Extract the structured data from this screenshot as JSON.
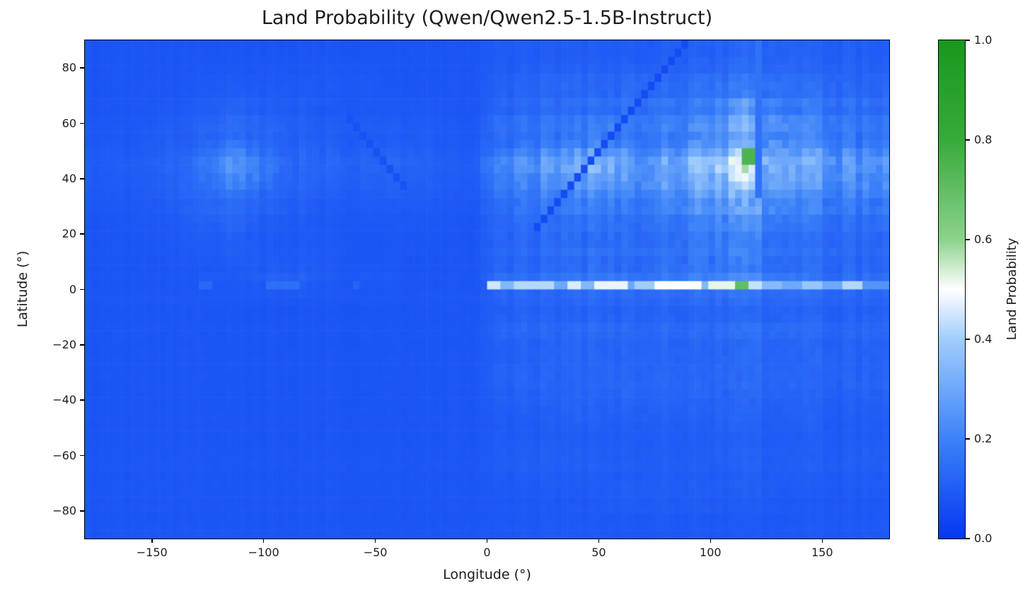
{
  "colors": {
    "background": "#ffffff",
    "spine": "#000000",
    "text": "#1c1c1c"
  },
  "chart_data": {
    "type": "heatmap",
    "title": "Land Probability (Qwen/Qwen2.5-1.5B-Instruct)",
    "xlabel": "Longitude (°)",
    "ylabel": "Latitude (°)",
    "x_range": [
      -180,
      180
    ],
    "y_range": [
      -90,
      90
    ],
    "x_ticks": [
      {
        "v": -150,
        "label": "−150"
      },
      {
        "v": -100,
        "label": "−100"
      },
      {
        "v": -50,
        "label": "−50"
      },
      {
        "v": 0,
        "label": "0"
      },
      {
        "v": 50,
        "label": "50"
      },
      {
        "v": 100,
        "label": "100"
      },
      {
        "v": 150,
        "label": "150"
      }
    ],
    "y_ticks": [
      {
        "v": 80,
        "label": "80"
      },
      {
        "v": 60,
        "label": "60"
      },
      {
        "v": 40,
        "label": "40"
      },
      {
        "v": 20,
        "label": "20"
      },
      {
        "v": 0,
        "label": "0"
      },
      {
        "v": -20,
        "label": "−20"
      },
      {
        "v": -40,
        "label": "−40"
      },
      {
        "v": -60,
        "label": "−60"
      },
      {
        "v": -80,
        "label": "−80"
      }
    ],
    "colorbar": {
      "label": "Land Probability",
      "range": [
        0,
        1
      ],
      "ticks": [
        {
          "v": 1.0,
          "label": "1.0"
        },
        {
          "v": 0.8,
          "label": "0.8"
        },
        {
          "v": 0.6,
          "label": "0.6"
        },
        {
          "v": 0.4,
          "label": "0.4"
        },
        {
          "v": 0.2,
          "label": "0.2"
        },
        {
          "v": 0.0,
          "label": "0.0"
        }
      ]
    },
    "colormap_stops": [
      {
        "t": 0.0,
        "color": [
          5,
          55,
          242
        ]
      },
      {
        "t": 0.2,
        "color": [
          60,
          130,
          248
        ]
      },
      {
        "t": 0.4,
        "color": [
          160,
          205,
          252
        ]
      },
      {
        "t": 0.5,
        "color": [
          255,
          255,
          255
        ]
      },
      {
        "t": 0.6,
        "color": [
          140,
          210,
          140
        ]
      },
      {
        "t": 0.8,
        "color": [
          55,
          170,
          58
        ]
      },
      {
        "t": 1.0,
        "color": [
          24,
          152,
          28
        ]
      }
    ],
    "grid_resolution_deg": 3,
    "coarse_grid": {
      "lon_centers_start": -175,
      "lon_step": 10,
      "lat_centers_start": 85,
      "lat_step": -10,
      "values": [
        [
          0.08,
          0.08,
          0.08,
          0.08,
          0.08,
          0.08,
          0.08,
          0.08,
          0.08,
          0.08,
          0.08,
          0.08,
          0.08,
          0.08,
          0.08,
          0.08,
          0.08,
          0.08,
          0.1,
          0.1,
          0.1,
          0.1,
          0.1,
          0.1,
          0.1,
          0.1,
          0.11,
          0.11,
          0.12,
          0.13,
          0.13,
          0.12,
          0.11,
          0.11,
          0.11,
          0.1
        ],
        [
          0.08,
          0.08,
          0.08,
          0.08,
          0.08,
          0.09,
          0.09,
          0.09,
          0.09,
          0.09,
          0.09,
          0.09,
          0.09,
          0.08,
          0.08,
          0.08,
          0.08,
          0.08,
          0.11,
          0.11,
          0.12,
          0.12,
          0.12,
          0.12,
          0.13,
          0.13,
          0.13,
          0.14,
          0.15,
          0.16,
          0.15,
          0.14,
          0.13,
          0.13,
          0.12,
          0.12
        ],
        [
          0.08,
          0.08,
          0.08,
          0.09,
          0.09,
          0.1,
          0.11,
          0.11,
          0.1,
          0.1,
          0.09,
          0.09,
          0.09,
          0.09,
          0.09,
          0.09,
          0.08,
          0.08,
          0.13,
          0.13,
          0.14,
          0.14,
          0.14,
          0.15,
          0.15,
          0.16,
          0.17,
          0.18,
          0.22,
          0.26,
          0.22,
          0.18,
          0.17,
          0.16,
          0.15,
          0.14
        ],
        [
          0.09,
          0.09,
          0.09,
          0.1,
          0.1,
          0.12,
          0.14,
          0.13,
          0.12,
          0.11,
          0.1,
          0.1,
          0.1,
          0.1,
          0.1,
          0.1,
          0.09,
          0.09,
          0.15,
          0.15,
          0.16,
          0.17,
          0.18,
          0.2,
          0.17,
          0.18,
          0.19,
          0.22,
          0.27,
          0.32,
          0.27,
          0.22,
          0.2,
          0.19,
          0.17,
          0.16
        ],
        [
          0.1,
          0.1,
          0.1,
          0.11,
          0.12,
          0.17,
          0.24,
          0.22,
          0.16,
          0.13,
          0.12,
          0.12,
          0.12,
          0.12,
          0.12,
          0.11,
          0.1,
          0.1,
          0.22,
          0.24,
          0.26,
          0.28,
          0.32,
          0.34,
          0.26,
          0.28,
          0.3,
          0.36,
          0.44,
          0.5,
          0.4,
          0.33,
          0.3,
          0.28,
          0.26,
          0.24
        ],
        [
          0.09,
          0.09,
          0.09,
          0.1,
          0.11,
          0.13,
          0.15,
          0.14,
          0.12,
          0.11,
          0.1,
          0.1,
          0.1,
          0.1,
          0.1,
          0.1,
          0.09,
          0.09,
          0.16,
          0.17,
          0.18,
          0.19,
          0.2,
          0.22,
          0.19,
          0.21,
          0.23,
          0.26,
          0.3,
          0.32,
          0.27,
          0.23,
          0.21,
          0.2,
          0.19,
          0.18
        ],
        [
          0.08,
          0.08,
          0.09,
          0.09,
          0.1,
          0.11,
          0.12,
          0.11,
          0.1,
          0.1,
          0.09,
          0.09,
          0.09,
          0.09,
          0.09,
          0.09,
          0.08,
          0.08,
          0.14,
          0.14,
          0.15,
          0.15,
          0.16,
          0.17,
          0.15,
          0.17,
          0.18,
          0.2,
          0.24,
          0.25,
          0.21,
          0.18,
          0.17,
          0.16,
          0.15,
          0.15
        ],
        [
          0.08,
          0.08,
          0.08,
          0.08,
          0.09,
          0.09,
          0.1,
          0.1,
          0.09,
          0.09,
          0.09,
          0.09,
          0.08,
          0.08,
          0.08,
          0.08,
          0.08,
          0.08,
          0.13,
          0.13,
          0.13,
          0.14,
          0.14,
          0.15,
          0.14,
          0.15,
          0.16,
          0.17,
          0.19,
          0.2,
          0.17,
          0.15,
          0.14,
          0.14,
          0.13,
          0.13
        ],
        [
          0.08,
          0.08,
          0.08,
          0.08,
          0.08,
          0.09,
          0.09,
          0.1,
          0.11,
          0.11,
          0.1,
          0.09,
          0.09,
          0.09,
          0.08,
          0.08,
          0.08,
          0.08,
          0.14,
          0.14,
          0.14,
          0.15,
          0.15,
          0.16,
          0.15,
          0.16,
          0.17,
          0.18,
          0.19,
          0.2,
          0.17,
          0.16,
          0.15,
          0.14,
          0.14,
          0.13
        ],
        [
          0.08,
          0.08,
          0.08,
          0.08,
          0.08,
          0.08,
          0.08,
          0.08,
          0.08,
          0.08,
          0.08,
          0.08,
          0.08,
          0.08,
          0.08,
          0.08,
          0.08,
          0.08,
          0.11,
          0.11,
          0.11,
          0.11,
          0.12,
          0.12,
          0.12,
          0.12,
          0.12,
          0.12,
          0.13,
          0.13,
          0.12,
          0.12,
          0.12,
          0.11,
          0.11,
          0.11
        ],
        [
          0.08,
          0.08,
          0.08,
          0.08,
          0.08,
          0.08,
          0.08,
          0.08,
          0.08,
          0.08,
          0.08,
          0.08,
          0.08,
          0.08,
          0.08,
          0.08,
          0.08,
          0.08,
          0.12,
          0.12,
          0.12,
          0.12,
          0.13,
          0.13,
          0.13,
          0.13,
          0.13,
          0.13,
          0.14,
          0.14,
          0.14,
          0.13,
          0.13,
          0.12,
          0.12,
          0.12
        ],
        [
          0.08,
          0.08,
          0.08,
          0.08,
          0.08,
          0.08,
          0.08,
          0.08,
          0.08,
          0.08,
          0.08,
          0.08,
          0.08,
          0.08,
          0.08,
          0.08,
          0.08,
          0.08,
          0.11,
          0.11,
          0.11,
          0.12,
          0.12,
          0.12,
          0.12,
          0.12,
          0.12,
          0.12,
          0.13,
          0.13,
          0.13,
          0.12,
          0.12,
          0.12,
          0.11,
          0.11
        ],
        [
          0.08,
          0.08,
          0.08,
          0.08,
          0.08,
          0.08,
          0.08,
          0.08,
          0.08,
          0.08,
          0.08,
          0.08,
          0.08,
          0.08,
          0.08,
          0.08,
          0.08,
          0.08,
          0.12,
          0.12,
          0.12,
          0.12,
          0.12,
          0.13,
          0.13,
          0.13,
          0.13,
          0.13,
          0.13,
          0.14,
          0.13,
          0.13,
          0.12,
          0.12,
          0.12,
          0.12
        ],
        [
          0.08,
          0.08,
          0.08,
          0.08,
          0.08,
          0.08,
          0.08,
          0.08,
          0.08,
          0.08,
          0.08,
          0.08,
          0.08,
          0.08,
          0.08,
          0.08,
          0.08,
          0.08,
          0.1,
          0.1,
          0.1,
          0.11,
          0.11,
          0.11,
          0.11,
          0.11,
          0.11,
          0.11,
          0.12,
          0.12,
          0.11,
          0.11,
          0.11,
          0.1,
          0.1,
          0.1
        ],
        [
          0.08,
          0.08,
          0.08,
          0.08,
          0.08,
          0.08,
          0.08,
          0.08,
          0.08,
          0.08,
          0.08,
          0.08,
          0.08,
          0.08,
          0.08,
          0.08,
          0.08,
          0.08,
          0.1,
          0.1,
          0.1,
          0.1,
          0.1,
          0.1,
          0.1,
          0.1,
          0.1,
          0.1,
          0.11,
          0.11,
          0.1,
          0.1,
          0.1,
          0.1,
          0.1,
          0.1
        ],
        [
          0.08,
          0.08,
          0.08,
          0.08,
          0.08,
          0.08,
          0.08,
          0.08,
          0.08,
          0.08,
          0.08,
          0.08,
          0.08,
          0.08,
          0.08,
          0.08,
          0.08,
          0.08,
          0.1,
          0.1,
          0.1,
          0.1,
          0.1,
          0.1,
          0.1,
          0.1,
          0.1,
          0.1,
          0.1,
          0.11,
          0.1,
          0.1,
          0.1,
          0.1,
          0.1,
          0.1
        ],
        [
          0.08,
          0.08,
          0.08,
          0.08,
          0.08,
          0.08,
          0.08,
          0.08,
          0.08,
          0.08,
          0.08,
          0.08,
          0.08,
          0.08,
          0.08,
          0.08,
          0.08,
          0.08,
          0.09,
          0.09,
          0.09,
          0.09,
          0.09,
          0.1,
          0.1,
          0.1,
          0.1,
          0.1,
          0.1,
          0.1,
          0.1,
          0.09,
          0.09,
          0.09,
          0.09,
          0.09
        ],
        [
          0.08,
          0.08,
          0.08,
          0.08,
          0.08,
          0.08,
          0.08,
          0.08,
          0.08,
          0.08,
          0.08,
          0.08,
          0.08,
          0.08,
          0.08,
          0.08,
          0.08,
          0.08,
          0.09,
          0.09,
          0.09,
          0.09,
          0.09,
          0.09,
          0.09,
          0.09,
          0.09,
          0.09,
          0.09,
          0.09,
          0.09,
          0.09,
          0.09,
          0.09,
          0.09,
          0.09
        ]
      ]
    },
    "features": {
      "equator_stripe": {
        "lat_band": [
          0,
          3
        ],
        "segments": [
          [
            -130,
            -124,
            0.13
          ],
          [
            -98,
            -84,
            0.15
          ],
          [
            -60,
            -56,
            0.12
          ],
          [
            0,
            6,
            0.45
          ],
          [
            6,
            12,
            0.34
          ],
          [
            12,
            30,
            0.42
          ],
          [
            30,
            36,
            0.3
          ],
          [
            36,
            42,
            0.46
          ],
          [
            42,
            48,
            0.34
          ],
          [
            48,
            62,
            0.48
          ],
          [
            62,
            66,
            0.3
          ],
          [
            66,
            75,
            0.4
          ],
          [
            75,
            96,
            0.5
          ],
          [
            96,
            99,
            0.34
          ],
          [
            99,
            112,
            0.52
          ],
          [
            112,
            117,
            0.7
          ],
          [
            117,
            122,
            0.44
          ],
          [
            122,
            132,
            0.35
          ],
          [
            132,
            140,
            0.3
          ],
          [
            140,
            150,
            0.38
          ],
          [
            150,
            160,
            0.3
          ],
          [
            160,
            168,
            0.42
          ],
          [
            168,
            180,
            0.25
          ]
        ]
      },
      "rects": [
        {
          "lon": [
            65,
            67.5
          ],
          "lat": [
            0,
            90
          ],
          "value": 0.085
        },
        {
          "lon": [
            119.5,
            122
          ],
          "lat": [
            33,
            90
          ],
          "value": 0.16
        },
        {
          "lon": [
            114,
            120
          ],
          "lat": [
            46.5,
            51
          ],
          "value": 0.75
        },
        {
          "lon": [
            114,
            118
          ],
          "lat": [
            43.5,
            46.5
          ],
          "value": 0.58
        }
      ],
      "diagonals": [
        {
          "type": "lat_equals_lon",
          "lon_range": [
            22,
            91
          ],
          "value": 0.055
        },
        {
          "type": "lat_equals_minus_lon",
          "lon_range": [
            -62,
            -36
          ],
          "value": 0.07
        }
      ]
    },
    "noise": {
      "col_weight": 0.6,
      "row_weight": 0.35,
      "cell_weight": 0.3,
      "amp_offset": 0.075,
      "amp_scale": 0.5,
      "amp_min": 0.006
    }
  }
}
